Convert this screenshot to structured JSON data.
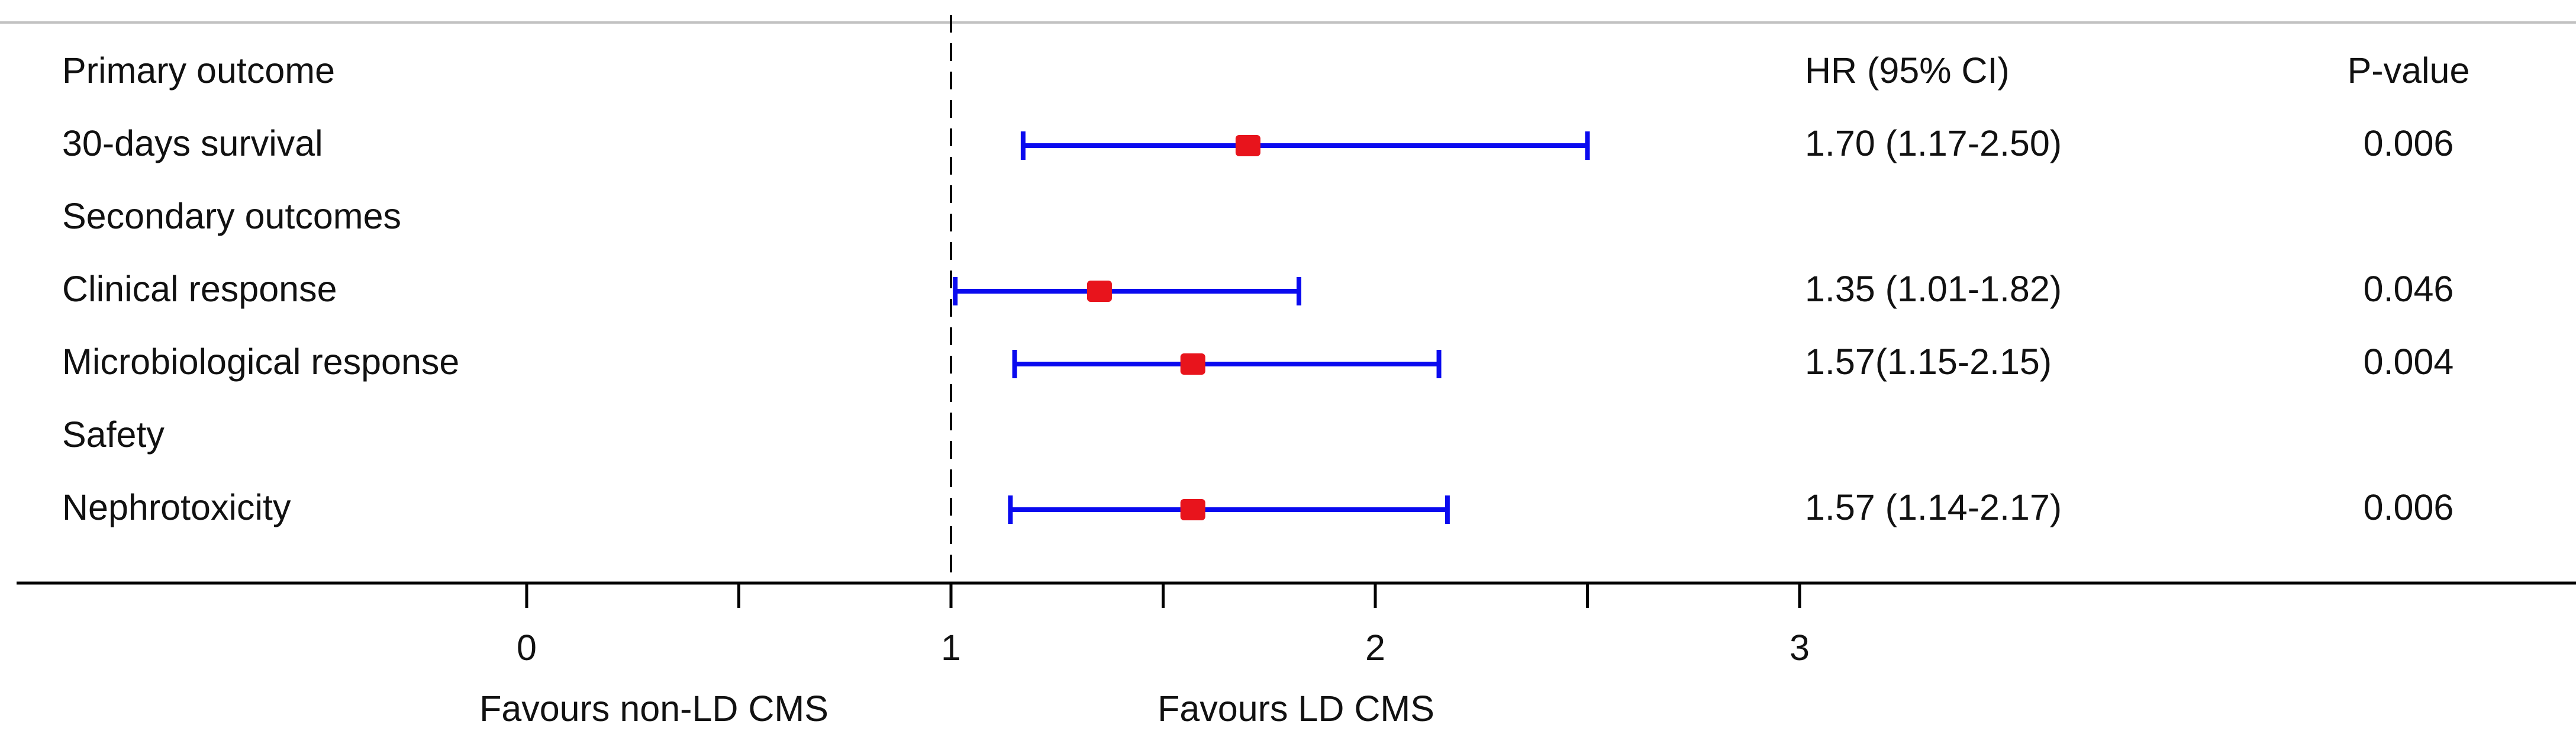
{
  "chart_data": {
    "type": "forest",
    "headers": {
      "estimate": "HR (95% CI)",
      "pvalue": "P-value"
    },
    "rows": [
      {
        "label": "Primary outcome",
        "is_header": true
      },
      {
        "label": "30-days survival",
        "is_header": false,
        "hr": 1.7,
        "lower": 1.17,
        "upper": 2.5,
        "estimate_text": "1.70 (1.17-2.50)",
        "pvalue": "0.006"
      },
      {
        "label": "Secondary outcomes",
        "is_header": true
      },
      {
        "label": "Clinical response",
        "is_header": false,
        "hr": 1.35,
        "lower": 1.01,
        "upper": 1.82,
        "estimate_text": "1.35 (1.01-1.82)",
        "pvalue": "0.046"
      },
      {
        "label": "Microbiological response",
        "is_header": false,
        "hr": 1.57,
        "lower": 1.15,
        "upper": 2.15,
        "estimate_text": "1.57(1.15-2.15)",
        "pvalue": "0.004"
      },
      {
        "label": "Safety",
        "is_header": true
      },
      {
        "label": "Nephrotoxicity",
        "is_header": false,
        "hr": 1.57,
        "lower": 1.14,
        "upper": 2.17,
        "estimate_text": "1.57 (1.14-2.17)",
        "pvalue": "0.006"
      }
    ],
    "x_axis": {
      "range": [
        -1.0,
        3.0
      ],
      "ticks": [
        0,
        0.5,
        1,
        1.5,
        2,
        2.5,
        3
      ],
      "tick_labels": [
        {
          "value": 0,
          "label": "0"
        },
        {
          "value": 1,
          "label": "1"
        },
        {
          "value": 2,
          "label": "2"
        },
        {
          "value": 3,
          "label": "3"
        }
      ],
      "reference_line": 1
    },
    "annotations": {
      "left_favours": "Favours non-LD CMS",
      "right_favours": "Favours LD CMS"
    },
    "colors": {
      "ci_line": "#0a0aef",
      "point": "#e8141c",
      "axis": "#000000",
      "top_rule": "#c2c2c2",
      "text": "#111111"
    },
    "grid": false,
    "legend": "none"
  }
}
